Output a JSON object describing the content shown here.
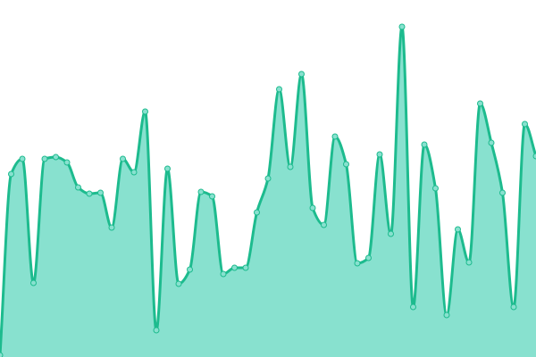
{
  "chart_data": {
    "type": "area",
    "categories": [
      null,
      null,
      null,
      null,
      null,
      null,
      null,
      null,
      null,
      null,
      null,
      null,
      null,
      null,
      null,
      null,
      null,
      null,
      null,
      null,
      null,
      null,
      null,
      null,
      null,
      null,
      null,
      null,
      null,
      null,
      null,
      null,
      null,
      null,
      null,
      null,
      null,
      null,
      null,
      null,
      null,
      null,
      null,
      null,
      null,
      null,
      null,
      null,
      null
    ],
    "values": [
      2,
      205,
      222,
      83,
      222,
      224,
      218,
      190,
      183,
      184,
      145,
      222,
      207,
      275,
      30,
      211,
      82,
      98,
      185,
      180,
      93,
      100,
      100,
      162,
      200,
      300,
      213,
      317,
      167,
      148,
      247,
      216,
      105,
      111,
      227,
      138,
      370,
      56,
      238,
      189,
      47,
      143,
      106,
      284,
      240,
      184,
      56,
      261,
      225
    ],
    "color": "#1dbb8e",
    "fill": "#88e1cf",
    "ylim": [
      0,
      400
    ]
  }
}
